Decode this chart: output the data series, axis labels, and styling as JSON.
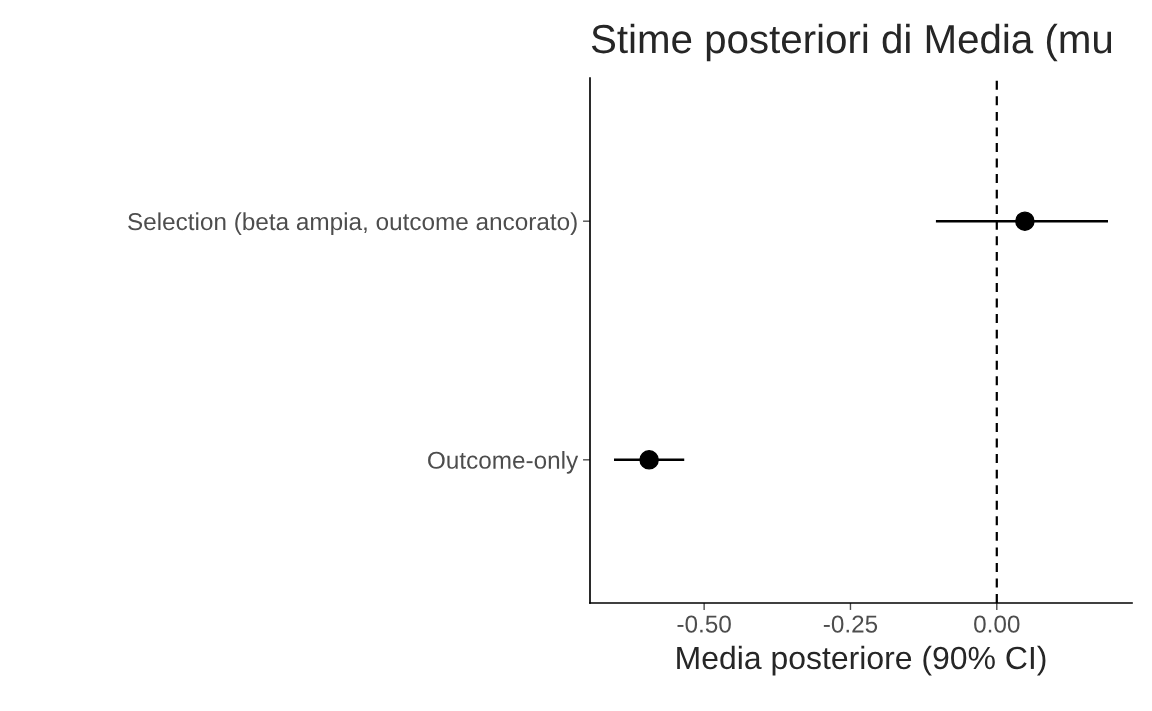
{
  "chart_data": {
    "type": "scatter",
    "orientation": "horizontal",
    "title": "Stime posteriori di Media (mu",
    "xlabel": "Media posteriore (90% CI)",
    "categories": [
      "Selection (beta ampia, outcome ancorato)",
      "Outcome-only"
    ],
    "values": [
      0.048,
      -0.594
    ],
    "errors": [
      [
        -0.104,
        0.19
      ],
      [
        -0.654,
        -0.534
      ]
    ],
    "color": "#000000",
    "marker": "circle",
    "xlim": [
      -0.695,
      0.231
    ],
    "xticks": [
      {
        "value": -0.5,
        "label": "-0.50"
      },
      {
        "value": -0.25,
        "label": "-0.25"
      },
      {
        "value": 0,
        "label": "0.00"
      }
    ],
    "ref_lines": [
      {
        "axis": "x",
        "value": 0,
        "line_style": "dashed",
        "color": "#000000"
      }
    ],
    "grid": false,
    "legend": false
  }
}
